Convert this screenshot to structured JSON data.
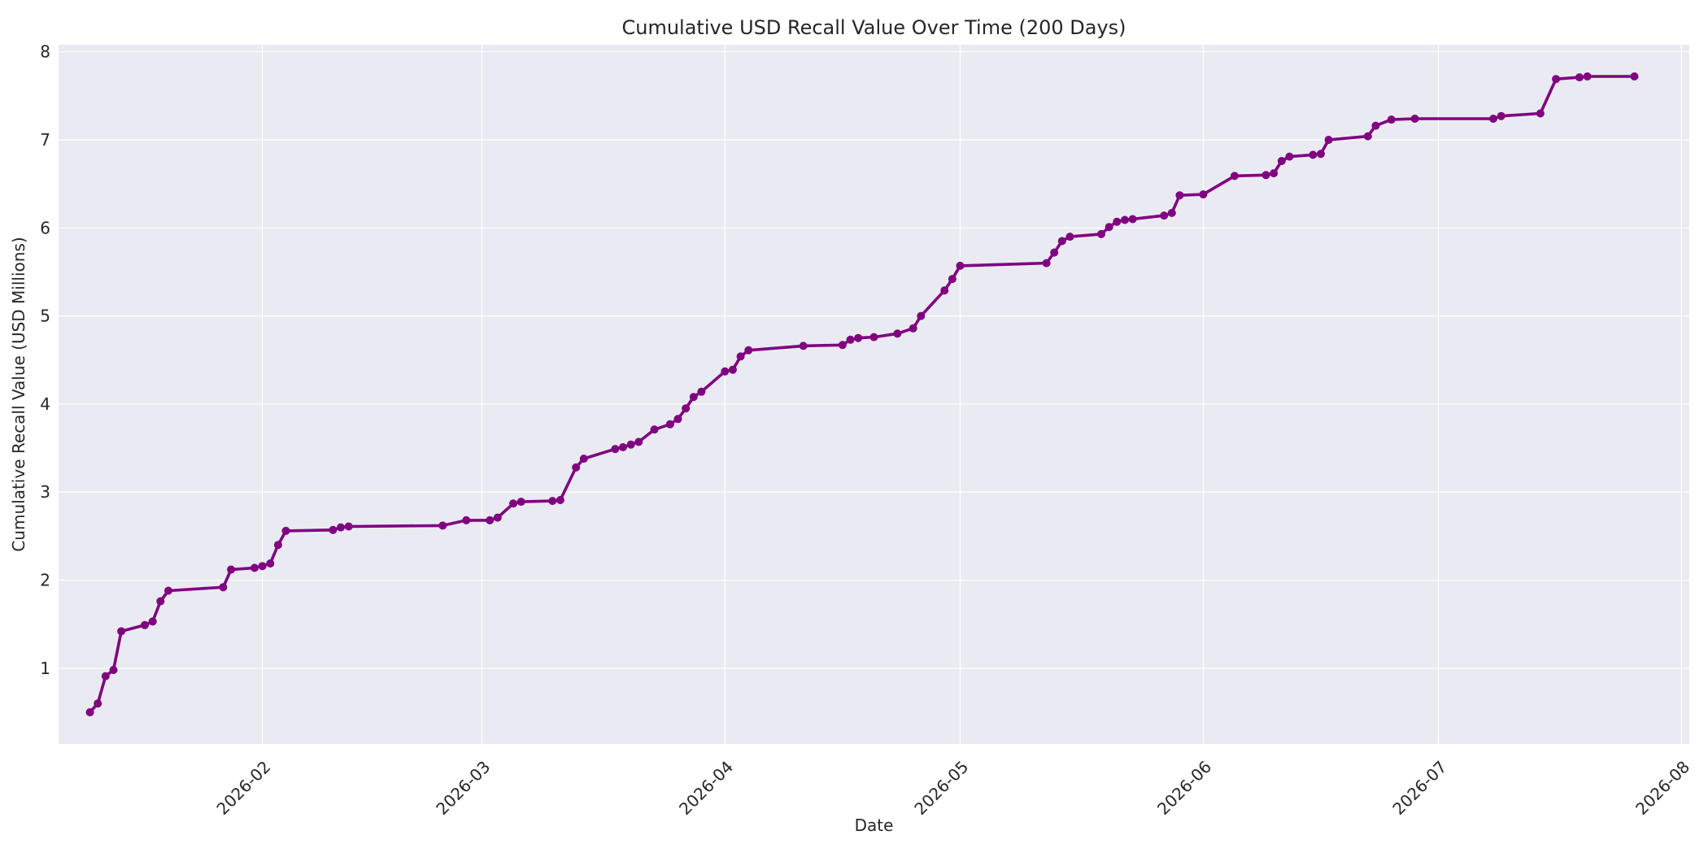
{
  "chart_data": {
    "type": "line",
    "title": "Cumulative USD Recall Value Over Time (200 Days)",
    "xlabel": "Date",
    "ylabel": "Cumulative Recall Value (USD Millions)",
    "xlim": [
      "2026-01-06",
      "2026-08-02"
    ],
    "ylim": [
      0.14,
      8.08
    ],
    "x_ticks": [
      "2026-02",
      "2026-03",
      "2026-04",
      "2026-05",
      "2026-06",
      "2026-07",
      "2026-08"
    ],
    "y_ticks": [
      1,
      2,
      3,
      4,
      5,
      6,
      7,
      8
    ],
    "grid": true,
    "legend": "none",
    "colors": {
      "plot_background": "#EAEAF2",
      "grid": "#FFFFFF",
      "line": "#800080"
    },
    "series": [
      {
        "x": [
          "2026-01-10",
          "2026-01-11",
          "2026-01-12",
          "2026-01-13",
          "2026-01-14",
          "2026-01-17",
          "2026-01-18",
          "2026-01-19",
          "2026-01-20",
          "2026-01-27",
          "2026-01-28",
          "2026-01-31",
          "2026-02-01",
          "2026-02-02",
          "2026-02-03",
          "2026-02-04",
          "2026-02-10",
          "2026-02-11",
          "2026-02-12",
          "2026-02-24",
          "2026-02-27",
          "2026-03-02",
          "2026-03-03",
          "2026-03-05",
          "2026-03-06",
          "2026-03-10",
          "2026-03-11",
          "2026-03-13",
          "2026-03-14",
          "2026-03-18",
          "2026-03-19",
          "2026-03-20",
          "2026-03-21",
          "2026-03-23",
          "2026-03-25",
          "2026-03-26",
          "2026-03-27",
          "2026-03-28",
          "2026-03-29",
          "2026-04-01",
          "2026-04-02",
          "2026-04-03",
          "2026-04-04",
          "2026-04-11",
          "2026-04-16",
          "2026-04-17",
          "2026-04-18",
          "2026-04-20",
          "2026-04-23",
          "2026-04-25",
          "2026-04-26",
          "2026-04-29",
          "2026-04-30",
          "2026-05-01",
          "2026-05-12",
          "2026-05-13",
          "2026-05-14",
          "2026-05-15",
          "2026-05-19",
          "2026-05-20",
          "2026-05-21",
          "2026-05-22",
          "2026-05-23",
          "2026-05-27",
          "2026-05-28",
          "2026-05-29",
          "2026-06-01",
          "2026-06-05",
          "2026-06-09",
          "2026-06-10",
          "2026-06-11",
          "2026-06-12",
          "2026-06-15",
          "2026-06-16",
          "2026-06-17",
          "2026-06-22",
          "2026-06-23",
          "2026-06-25",
          "2026-06-28",
          "2026-07-08",
          "2026-07-09",
          "2026-07-14",
          "2026-07-16",
          "2026-07-19",
          "2026-07-20",
          "2026-07-26"
        ],
        "y": [
          0.5,
          0.6,
          0.91,
          0.98,
          1.42,
          1.49,
          1.53,
          1.76,
          1.88,
          1.92,
          2.12,
          2.14,
          2.16,
          2.19,
          2.4,
          2.56,
          2.57,
          2.6,
          2.61,
          2.62,
          2.68,
          2.68,
          2.71,
          2.87,
          2.89,
          2.9,
          2.91,
          3.28,
          3.38,
          3.49,
          3.51,
          3.54,
          3.57,
          3.71,
          3.77,
          3.83,
          3.95,
          4.08,
          4.14,
          4.37,
          4.39,
          4.54,
          4.61,
          4.66,
          4.67,
          4.73,
          4.75,
          4.76,
          4.8,
          4.86,
          5.0,
          5.29,
          5.42,
          5.57,
          5.6,
          5.72,
          5.85,
          5.9,
          5.93,
          6.01,
          6.07,
          6.09,
          6.1,
          6.14,
          6.17,
          6.37,
          6.38,
          6.59,
          6.6,
          6.62,
          6.76,
          6.81,
          6.83,
          6.84,
          7.0,
          7.04,
          7.16,
          7.23,
          7.24,
          7.24,
          7.27,
          7.3,
          7.69,
          7.71,
          7.72,
          7.72
        ]
      }
    ]
  }
}
